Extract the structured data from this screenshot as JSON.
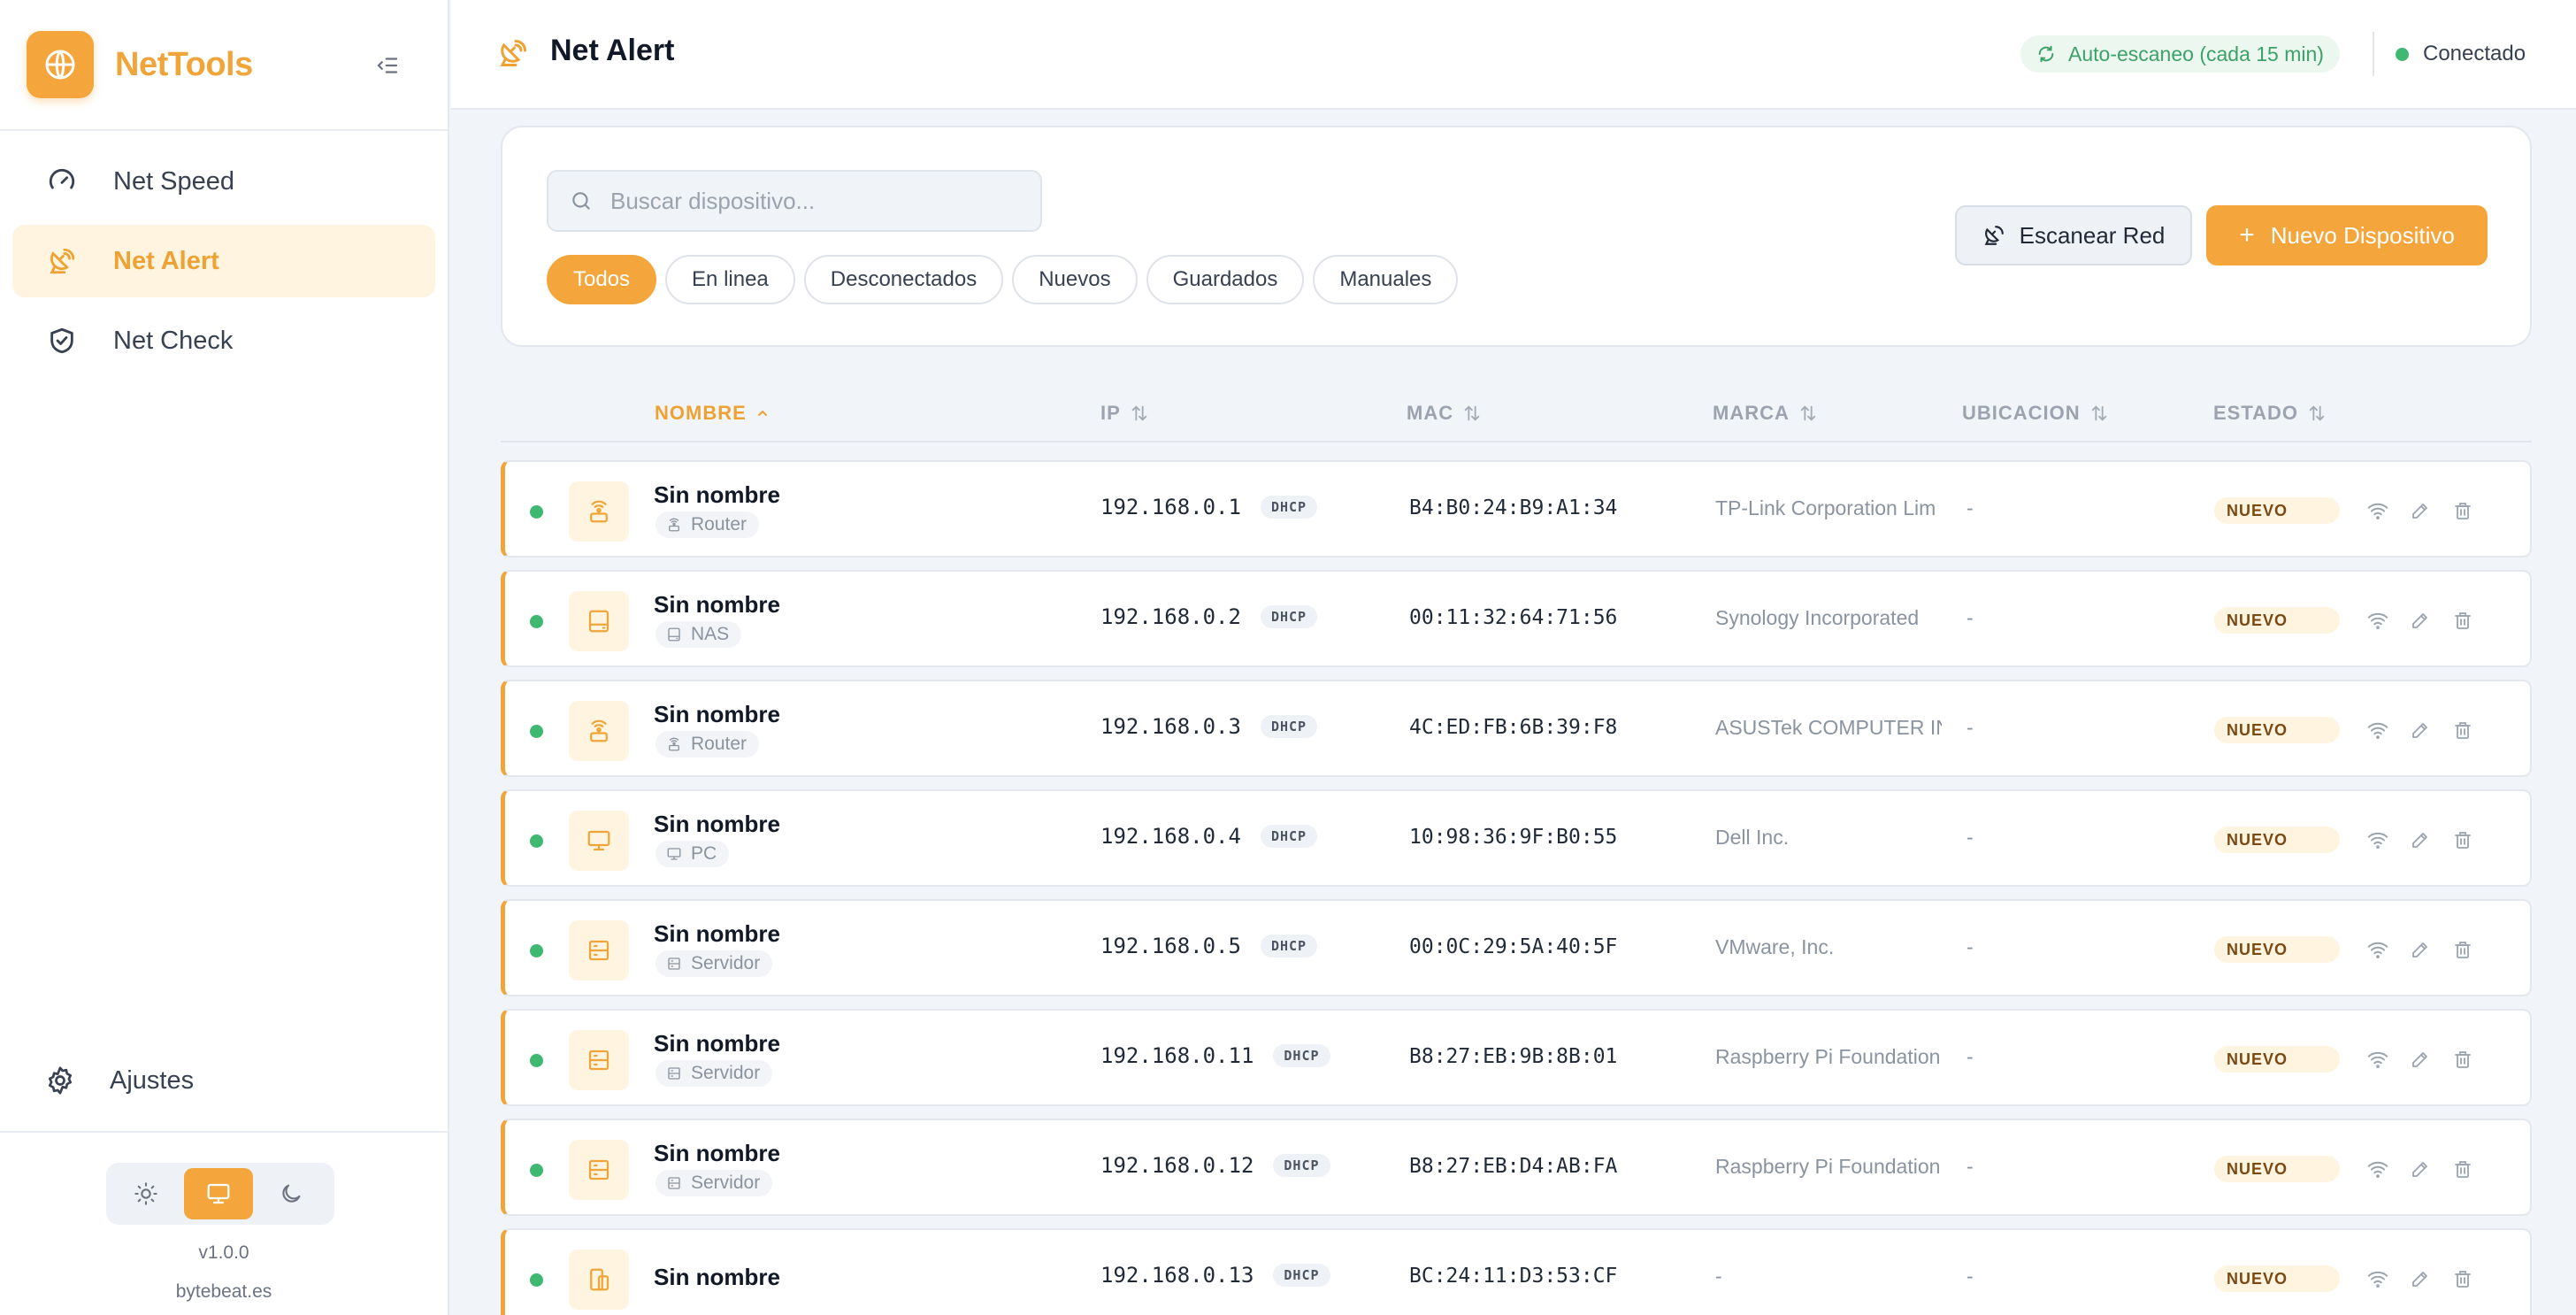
{
  "app": {
    "name": "NetTools",
    "version": "v1.0.0",
    "site": "bytebeat.es"
  },
  "sidebar": {
    "items": [
      {
        "label": "Net Speed",
        "icon": "speedometer-icon",
        "active": false
      },
      {
        "label": "Net Alert",
        "icon": "radar-dish-icon",
        "active": true
      },
      {
        "label": "Net Check",
        "icon": "shield-check-icon",
        "active": false
      }
    ],
    "settings_label": "Ajustes",
    "theme_options": [
      "sun-icon",
      "monitor-icon",
      "moon-icon"
    ],
    "theme_selected": "monitor-icon"
  },
  "header": {
    "title": "Net Alert",
    "auto_scan": "Auto-escaneo (cada 15 min)",
    "connection": "Conectado"
  },
  "filters": {
    "search_placeholder": "Buscar dispositivo...",
    "chips": [
      "Todos",
      "En linea",
      "Desconectados",
      "Nuevos",
      "Guardados",
      "Manuales"
    ],
    "active_chip": "Todos",
    "scan_button": "Escanear Red",
    "new_button": "Nuevo Dispositivo"
  },
  "table": {
    "columns": [
      "NOMBRE",
      "IP",
      "MAC",
      "MARCA",
      "UBICACION",
      "ESTADO"
    ],
    "sorted_column": "NOMBRE",
    "rows": [
      {
        "name": "Sin nombre",
        "type": "Router",
        "type_icon": "router-icon",
        "ip": "192.168.0.1",
        "ip_mode": "DHCP",
        "mac": "B4:B0:24:B9:A1:34",
        "brand": "TP-Link Corporation Lim",
        "location": "-",
        "status": "NUEVO",
        "online": true
      },
      {
        "name": "Sin nombre",
        "type": "NAS",
        "type_icon": "nas-icon",
        "ip": "192.168.0.2",
        "ip_mode": "DHCP",
        "mac": "00:11:32:64:71:56",
        "brand": "Synology Incorporated",
        "location": "-",
        "status": "NUEVO",
        "online": true
      },
      {
        "name": "Sin nombre",
        "type": "Router",
        "type_icon": "router-icon",
        "ip": "192.168.0.3",
        "ip_mode": "DHCP",
        "mac": "4C:ED:FB:6B:39:F8",
        "brand": "ASUSTek COMPUTER IN",
        "location": "-",
        "status": "NUEVO",
        "online": true
      },
      {
        "name": "Sin nombre",
        "type": "PC",
        "type_icon": "monitor-icon",
        "ip": "192.168.0.4",
        "ip_mode": "DHCP",
        "mac": "10:98:36:9F:B0:55",
        "brand": "Dell Inc.",
        "location": "-",
        "status": "NUEVO",
        "online": true
      },
      {
        "name": "Sin nombre",
        "type": "Servidor",
        "type_icon": "server-icon",
        "ip": "192.168.0.5",
        "ip_mode": "DHCP",
        "mac": "00:0C:29:5A:40:5F",
        "brand": "VMware, Inc.",
        "location": "-",
        "status": "NUEVO",
        "online": true
      },
      {
        "name": "Sin nombre",
        "type": "Servidor",
        "type_icon": "server-icon",
        "ip": "192.168.0.11",
        "ip_mode": "DHCP",
        "mac": "B8:27:EB:9B:8B:01",
        "brand": "Raspberry Pi Foundation",
        "location": "-",
        "status": "NUEVO",
        "online": true
      },
      {
        "name": "Sin nombre",
        "type": "Servidor",
        "type_icon": "server-icon",
        "ip": "192.168.0.12",
        "ip_mode": "DHCP",
        "mac": "B8:27:EB:D4:AB:FA",
        "brand": "Raspberry Pi Foundation",
        "location": "-",
        "status": "NUEVO",
        "online": true
      },
      {
        "name": "Sin nombre",
        "type": "",
        "type_icon": "devices-icon",
        "ip": "192.168.0.13",
        "ip_mode": "DHCP",
        "mac": "BC:24:11:D3:53:CF",
        "brand": "-",
        "location": "-",
        "status": "NUEVO",
        "online": true
      }
    ]
  },
  "colors": {
    "accent": "#f4a63c",
    "online": "#3fb871",
    "badge_new_bg": "#fff4df"
  }
}
